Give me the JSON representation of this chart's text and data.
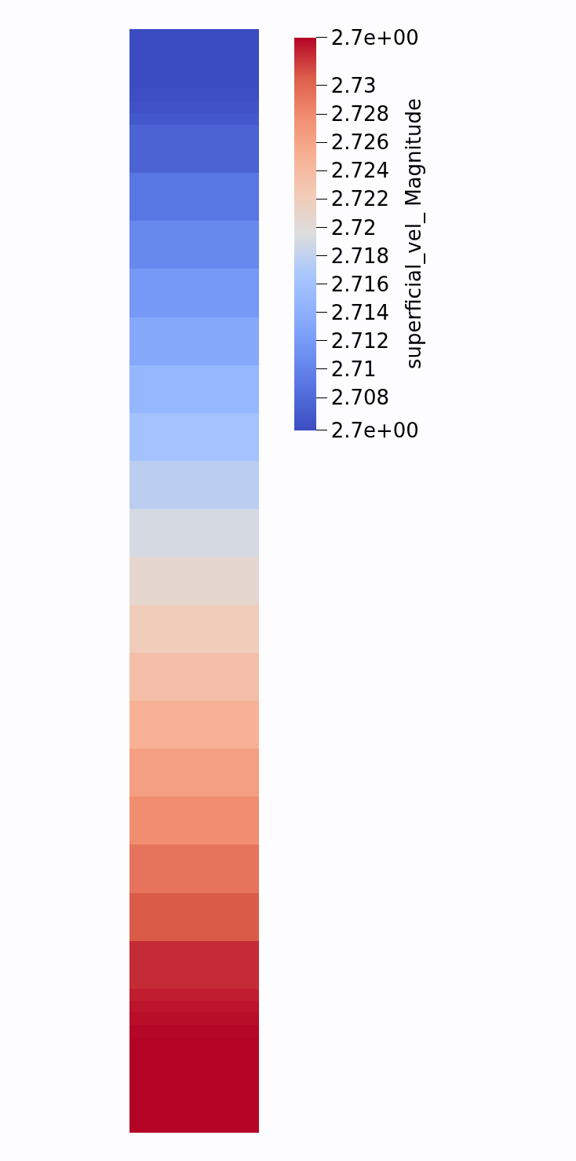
{
  "chart_data": {
    "type": "heatmap",
    "clabel": "superficial_vel_ Magnitude",
    "categories": [
      null
    ],
    "y_categories": [
      null,
      null,
      null,
      null,
      null,
      null,
      null,
      null,
      null,
      null,
      null,
      null,
      null,
      null,
      null,
      null,
      null,
      null,
      null,
      null,
      null,
      null,
      null,
      null,
      null,
      null,
      null,
      null,
      null,
      null,
      null,
      null,
      null,
      null,
      null,
      null,
      null,
      null,
      null,
      null,
      null,
      null,
      null,
      null,
      null,
      null,
      null,
      null,
      null,
      null,
      null,
      null,
      null,
      null,
      null,
      null,
      null,
      null,
      null,
      null,
      null,
      null,
      null,
      null,
      null,
      null,
      null,
      null,
      null,
      null,
      null,
      null,
      null,
      null,
      null,
      null,
      null,
      null,
      null,
      null,
      null,
      null,
      null,
      null,
      null,
      null,
      null,
      null,
      null,
      null,
      null,
      null
    ],
    "cells": [
      [
        2.7057
      ],
      [
        2.7057
      ],
      [
        2.7057
      ],
      [
        2.7057
      ],
      [
        2.7057
      ],
      [
        2.7059
      ],
      [
        2.7062
      ],
      [
        2.7066
      ],
      [
        2.7075
      ],
      [
        2.7075
      ],
      [
        2.7075
      ],
      [
        2.7075
      ],
      [
        2.709
      ],
      [
        2.709
      ],
      [
        2.709
      ],
      [
        2.709
      ],
      [
        2.7104
      ],
      [
        2.7104
      ],
      [
        2.7104
      ],
      [
        2.7104
      ],
      [
        2.7119
      ],
      [
        2.7119
      ],
      [
        2.7119
      ],
      [
        2.7119
      ],
      [
        2.7133
      ],
      [
        2.7133
      ],
      [
        2.7133
      ],
      [
        2.7133
      ],
      [
        2.7148
      ],
      [
        2.7148
      ],
      [
        2.7148
      ],
      [
        2.7148
      ],
      [
        2.7162
      ],
      [
        2.7162
      ],
      [
        2.7162
      ],
      [
        2.7162
      ],
      [
        2.7177
      ],
      [
        2.7177
      ],
      [
        2.7177
      ],
      [
        2.7177
      ],
      [
        2.7191
      ],
      [
        2.7191
      ],
      [
        2.7191
      ],
      [
        2.7191
      ],
      [
        2.7206
      ],
      [
        2.7206
      ],
      [
        2.7206
      ],
      [
        2.7206
      ],
      [
        2.722
      ],
      [
        2.722
      ],
      [
        2.722
      ],
      [
        2.722
      ],
      [
        2.7235
      ],
      [
        2.7235
      ],
      [
        2.7235
      ],
      [
        2.7235
      ],
      [
        2.7249
      ],
      [
        2.7249
      ],
      [
        2.7249
      ],
      [
        2.7249
      ],
      [
        2.7264
      ],
      [
        2.7264
      ],
      [
        2.7264
      ],
      [
        2.7264
      ],
      [
        2.7278
      ],
      [
        2.7278
      ],
      [
        2.7278
      ],
      [
        2.7278
      ],
      [
        2.7293
      ],
      [
        2.7293
      ],
      [
        2.7293
      ],
      [
        2.7293
      ],
      [
        2.7307
      ],
      [
        2.7307
      ],
      [
        2.7307
      ],
      [
        2.7307
      ],
      [
        2.7322
      ],
      [
        2.7322
      ],
      [
        2.7322
      ],
      [
        2.7322
      ],
      [
        2.7326
      ],
      [
        2.7329
      ],
      [
        2.7331
      ],
      [
        2.7333
      ],
      [
        2.7334
      ],
      [
        2.7334
      ],
      [
        2.7334
      ],
      [
        2.7334
      ],
      [
        2.7334
      ],
      [
        2.7334
      ],
      [
        2.7334
      ],
      [
        2.7334
      ]
    ],
    "clim": [
      2.7057,
      2.7334
    ],
    "cticks": [
      {
        "value": 2.7057,
        "label": "2.7e+00"
      },
      2.708,
      2.71,
      2.712,
      2.714,
      2.716,
      2.718,
      2.72,
      2.722,
      2.724,
      2.726,
      2.728,
      2.73,
      {
        "value": 2.7334,
        "label": "2.7e+00"
      }
    ]
  }
}
